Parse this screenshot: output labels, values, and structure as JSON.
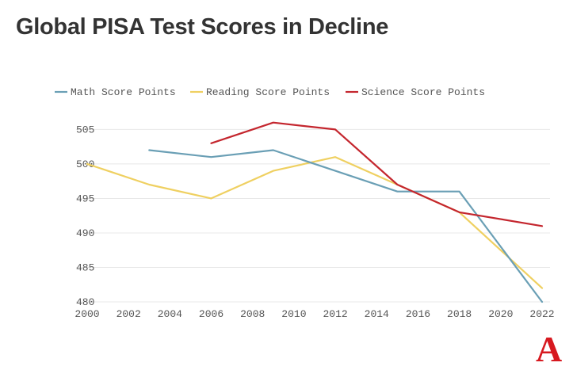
{
  "title": "Global PISA Test Scores in Decline",
  "logo_text": "A",
  "colors": {
    "math": "#6a9fb5",
    "reading": "#efd061",
    "science": "#c4262e",
    "grid": "#e8e8e8",
    "tick_text": "#555555",
    "logo": "#d71920"
  },
  "chart_data": {
    "type": "line",
    "title": "Global PISA Test Scores in Decline",
    "xlabel": "",
    "ylabel": "",
    "xlim": [
      2000,
      2022
    ],
    "ylim": [
      480,
      507
    ],
    "x_ticks": [
      2000,
      2002,
      2004,
      2006,
      2008,
      2010,
      2012,
      2014,
      2016,
      2018,
      2020,
      2022
    ],
    "y_ticks": [
      480,
      485,
      490,
      495,
      500,
      505
    ],
    "grid": true,
    "legend_position": "top-left",
    "series": [
      {
        "name": "Math Score Points",
        "color": "#6a9fb5",
        "x": [
          2003,
          2006,
          2009,
          2012,
          2015,
          2018,
          2022
        ],
        "y": [
          502,
          501,
          502,
          499,
          496,
          496,
          480
        ]
      },
      {
        "name": "Reading Score Points",
        "color": "#efd061",
        "x": [
          2000,
          2003,
          2006,
          2009,
          2012,
          2015,
          2018,
          2022
        ],
        "y": [
          500,
          497,
          495,
          499,
          501,
          497,
          493,
          482
        ]
      },
      {
        "name": "Science Score Points",
        "color": "#c4262e",
        "x": [
          2006,
          2009,
          2012,
          2015,
          2018,
          2022
        ],
        "y": [
          503,
          506,
          505,
          497,
          493,
          491
        ]
      }
    ]
  }
}
